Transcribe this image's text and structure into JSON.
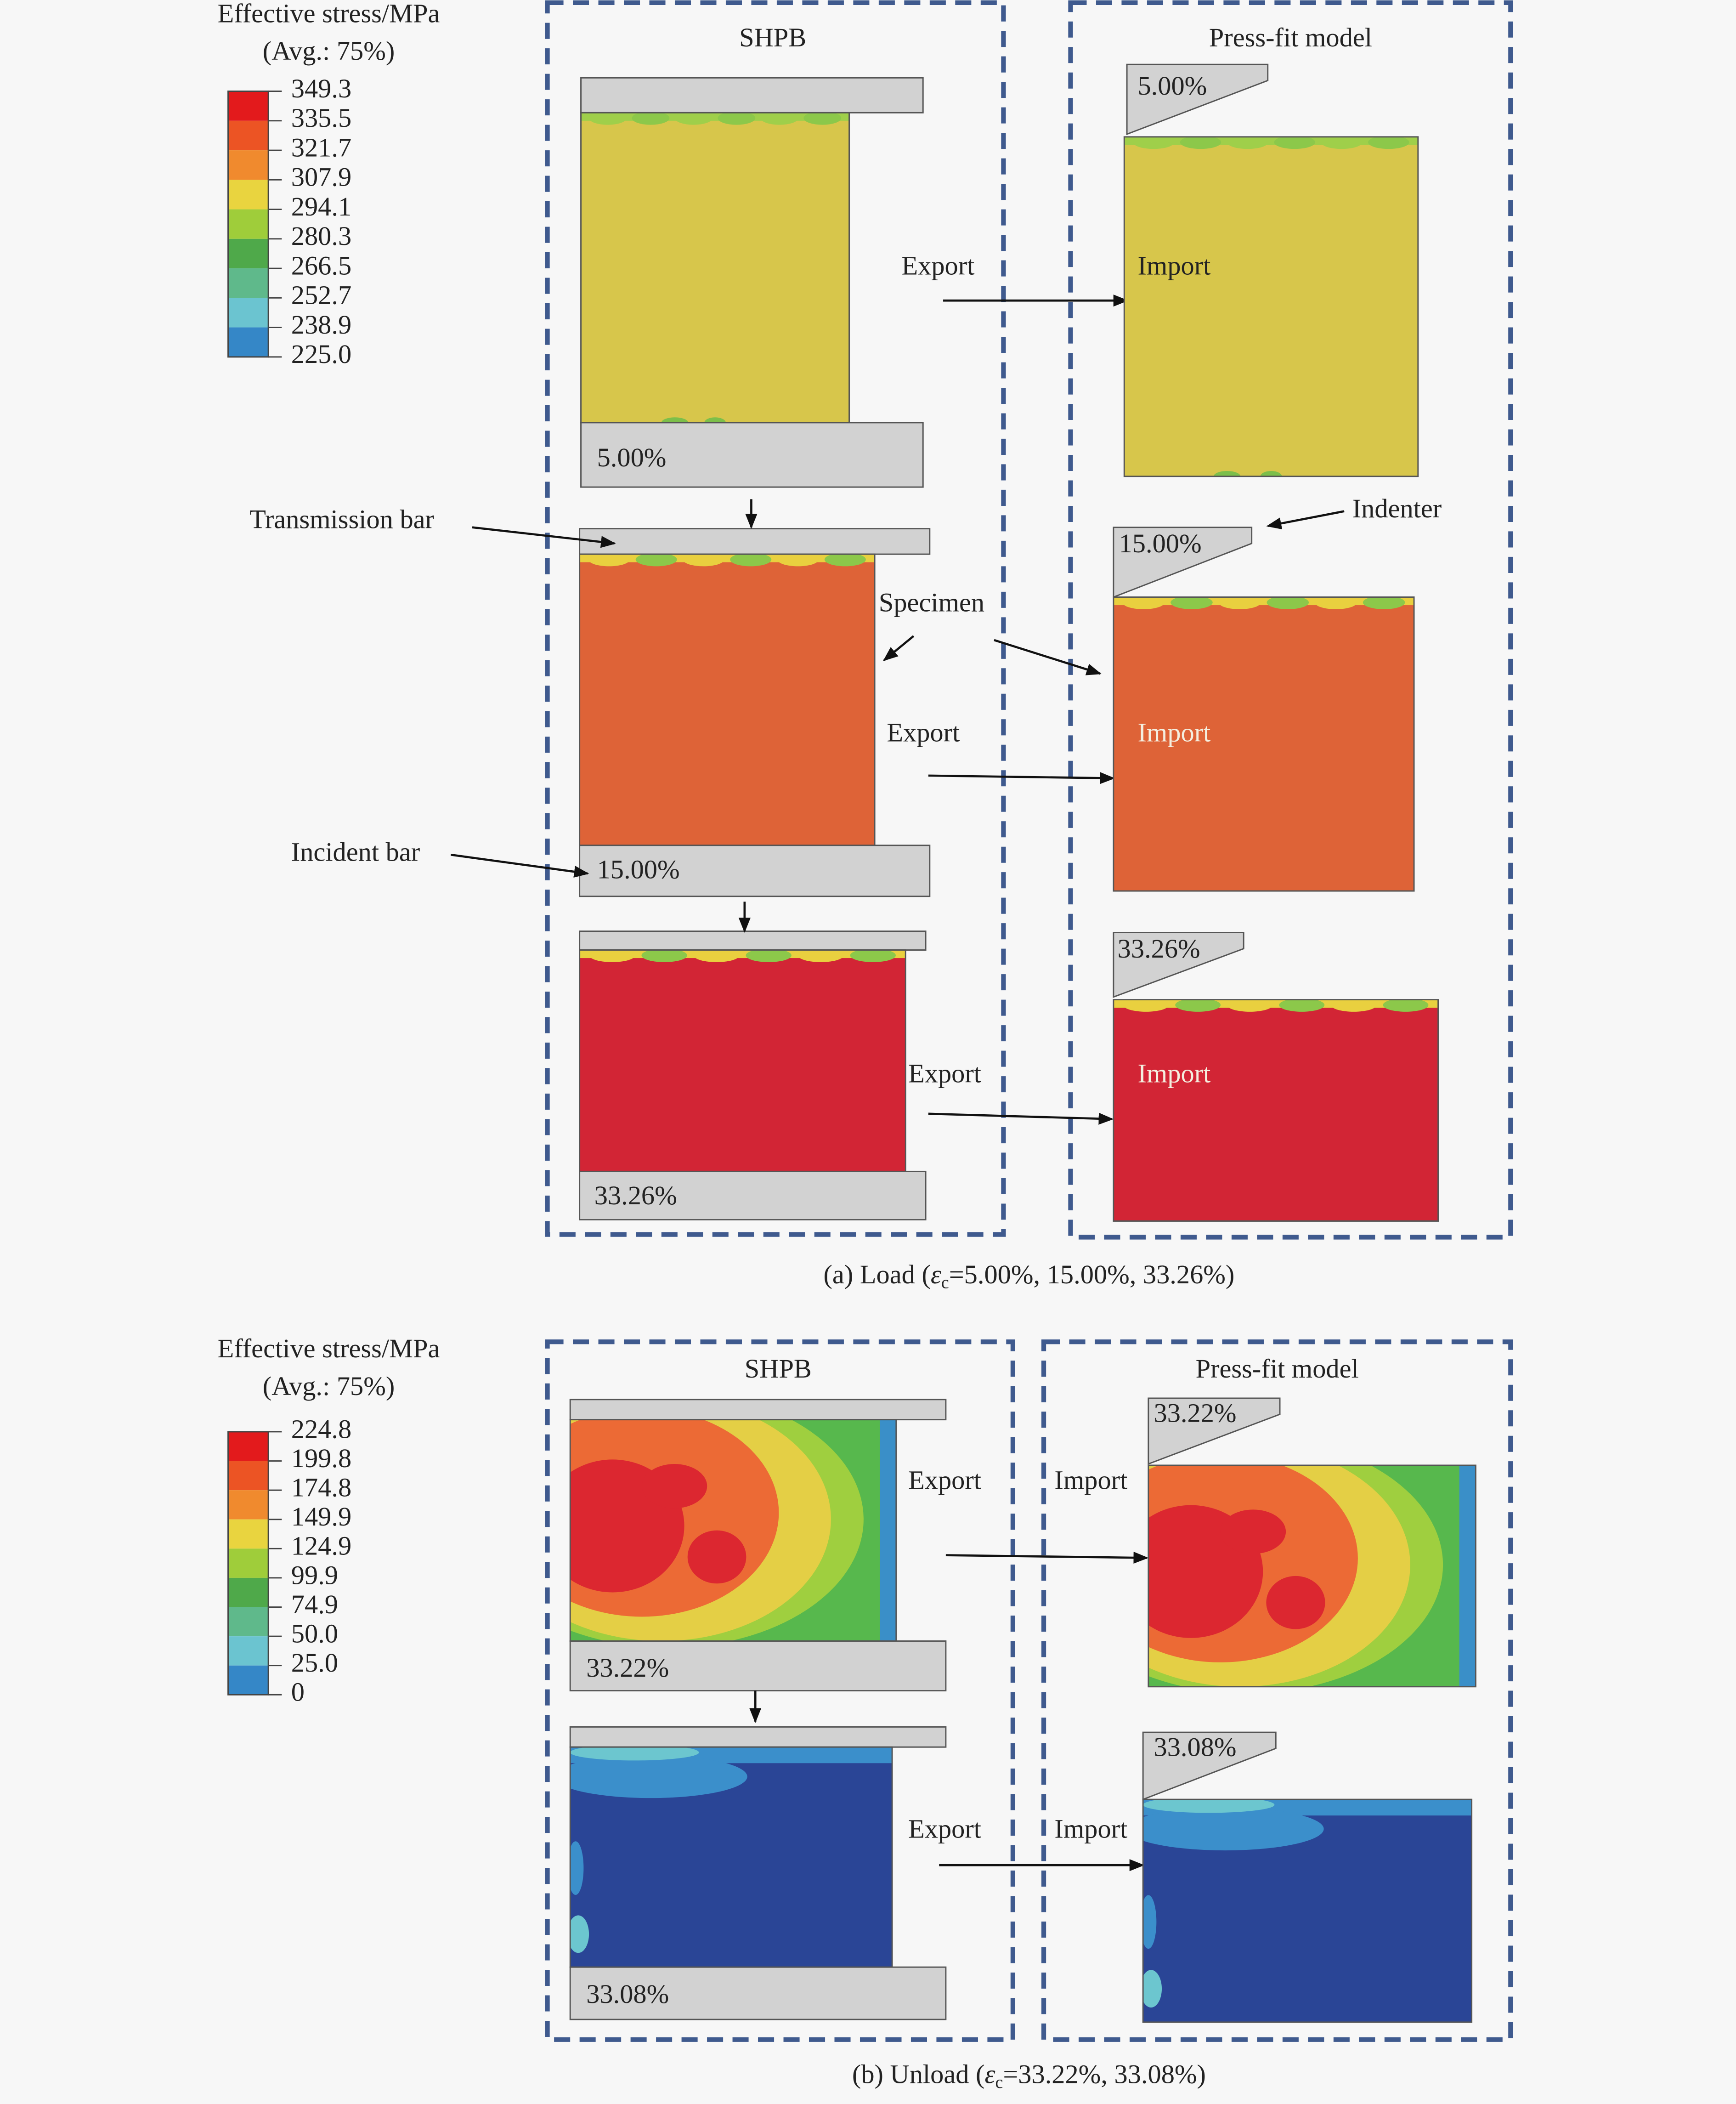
{
  "panels": [
    {
      "legend": {
        "title": "Effective stress/MPa",
        "subtitle": "(Avg.: 75%)",
        "labels": [
          "349.3",
          "335.5",
          "321.7",
          "307.9",
          "294.1",
          "280.3",
          "266.5",
          "252.7",
          "238.9",
          "225.0"
        ]
      },
      "shpb_title": "SHPB",
      "press_fit_title": "Press-fit model",
      "stages": [
        {
          "shpb_label": "5.00%",
          "export": "Export",
          "press_fit_label": "5.00%",
          "import": "Import"
        },
        {
          "shpb_label": "15.00%",
          "export": "Export",
          "press_fit_label": "15.00%",
          "import": "Import"
        },
        {
          "shpb_label": "33.26%",
          "export": "Export",
          "press_fit_label": "33.26%",
          "import": "Import"
        }
      ],
      "annotations": [
        "Transmission bar",
        "Specimen",
        "Indenter",
        "Incident bar"
      ],
      "caption": {
        "prefix": "(a) Load (",
        "symbol": "ε",
        "subscript": "c",
        "suffix": "=5.00%, 15.00%, 33.26%)"
      }
    },
    {
      "legend": {
        "title": "Effective stress/MPa",
        "subtitle": "(Avg.: 75%)",
        "labels": [
          "224.8",
          "199.8",
          "174.8",
          "149.9",
          "124.9",
          "99.9",
          "74.9",
          "50.0",
          "25.0",
          "0"
        ]
      },
      "shpb_title": "SHPB",
      "press_fit_title": "Press-fit model",
      "stages": [
        {
          "shpb_label": "33.22%",
          "export": "Export",
          "press_fit_label": "33.22%",
          "import": "Import"
        },
        {
          "shpb_label": "33.08%",
          "export": "Export",
          "press_fit_label": "33.08%",
          "import": "Import"
        }
      ],
      "caption": {
        "prefix": "(b) Unload (",
        "symbol": "ε",
        "subscript": "c",
        "suffix": "=33.22%, 33.08%)"
      }
    }
  ]
}
